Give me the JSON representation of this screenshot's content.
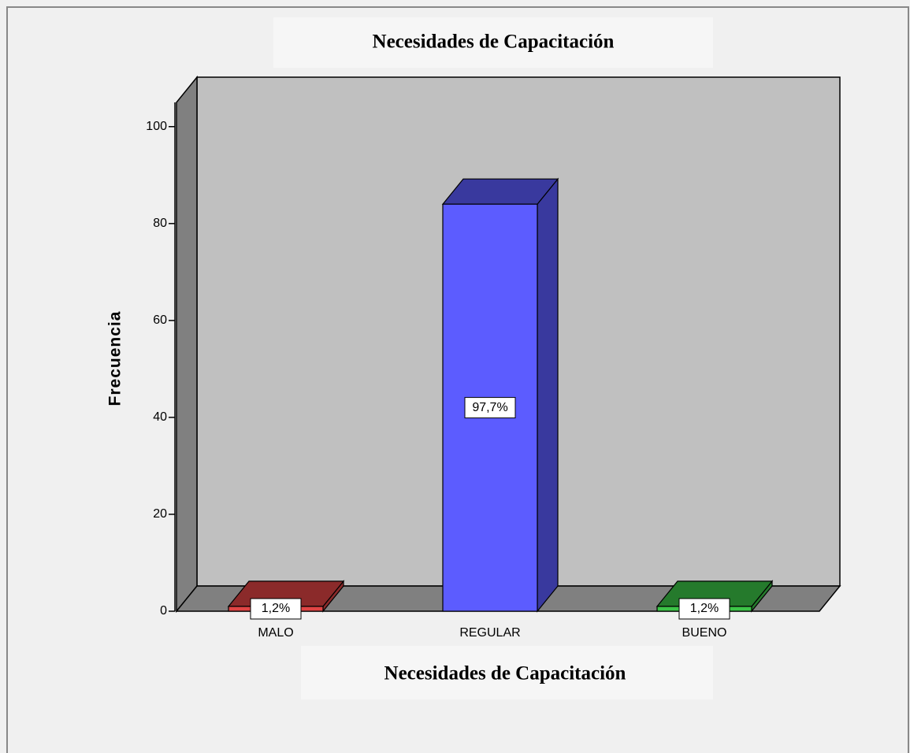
{
  "chart_data": {
    "type": "bar3d",
    "title": "Necesidades de Capacitación",
    "x_label": "Necesidades de Capacitación",
    "y_label": "Frecuencia",
    "categories": [
      "MALO",
      "REGULAR",
      "BUENO"
    ],
    "values": [
      1,
      84,
      1
    ],
    "value_labels": [
      "1,2%",
      "97,7%",
      "1,2%"
    ],
    "colors": [
      "#e04444",
      "#5c5cff",
      "#3cc447"
    ],
    "ylim": [
      0,
      105
    ],
    "yticks": [
      0,
      20,
      40,
      60,
      80,
      100
    ]
  }
}
